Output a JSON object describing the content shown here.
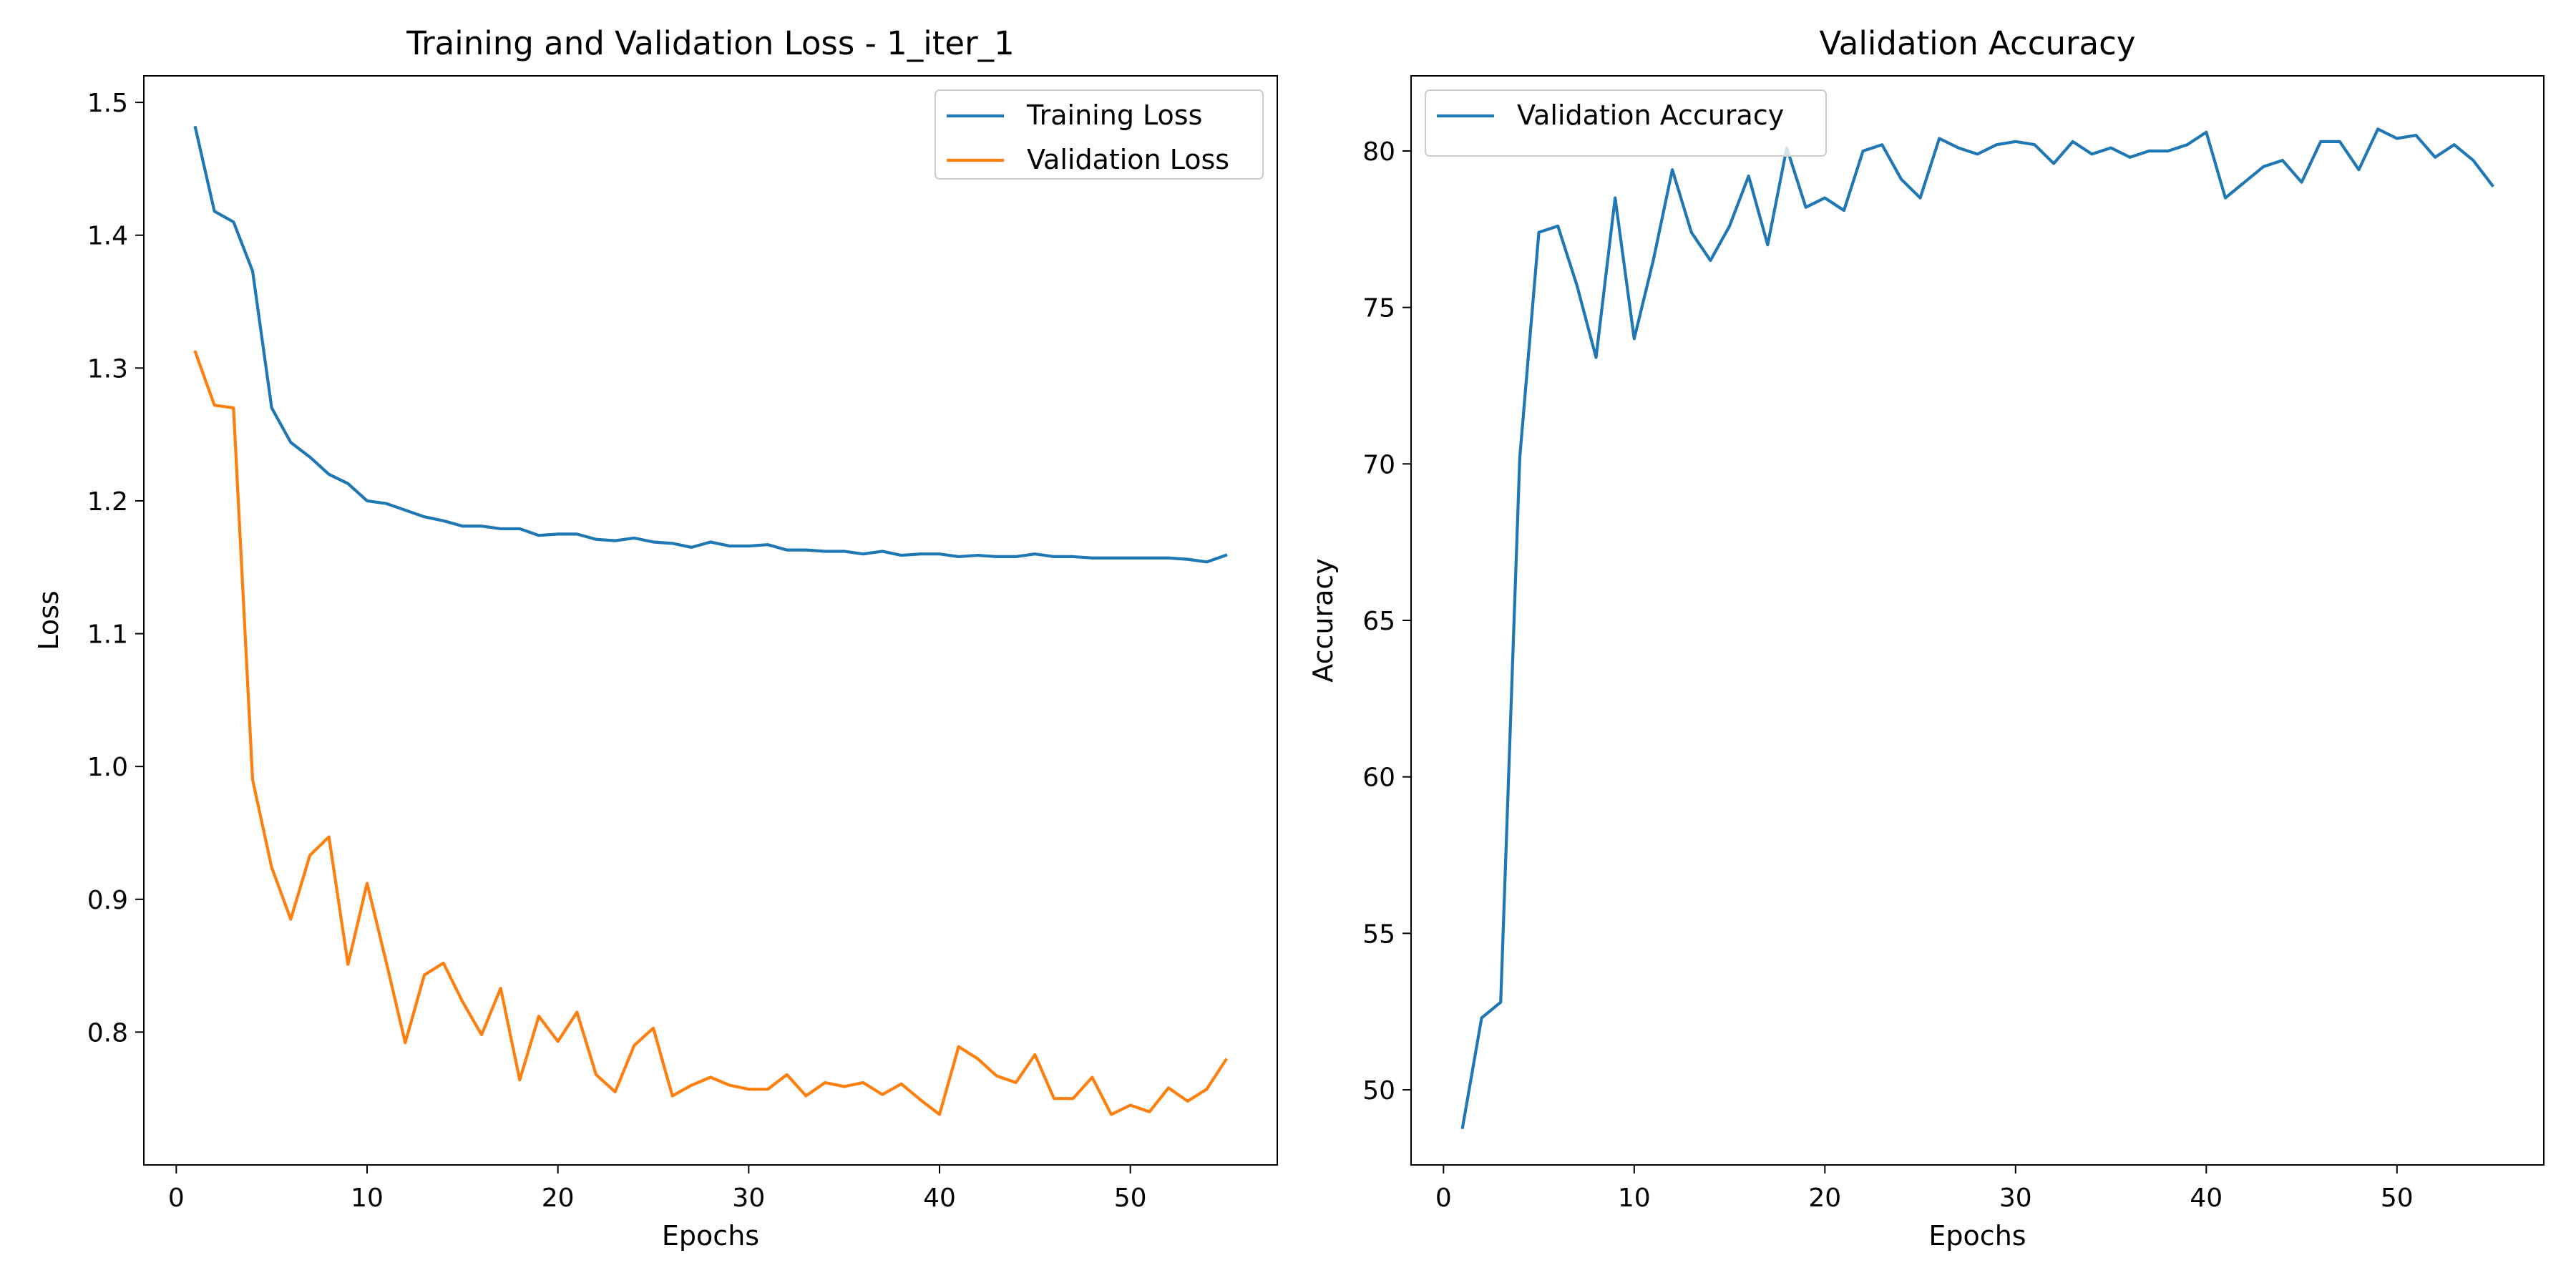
{
  "chart_data": [
    {
      "type": "line",
      "title": "Training and Validation Loss - 1_iter_1",
      "xlabel": "Epochs",
      "ylabel": "Loss",
      "xlim": [
        -1.7,
        57.7
      ],
      "ylim": [
        0.7,
        1.52
      ],
      "xticks": [
        0,
        10,
        20,
        30,
        40,
        50
      ],
      "yticks": [
        0.8,
        0.9,
        1.0,
        1.1,
        1.2,
        1.3,
        1.4,
        1.5
      ],
      "ytick_labels": [
        "0.8",
        "0.9",
        "1.0",
        "1.1",
        "1.2",
        "1.3",
        "1.4",
        "1.5"
      ],
      "grid": false,
      "legend_position": "upper right",
      "x": [
        1,
        2,
        3,
        4,
        5,
        6,
        7,
        8,
        9,
        10,
        11,
        12,
        13,
        14,
        15,
        16,
        17,
        18,
        19,
        20,
        21,
        22,
        23,
        24,
        25,
        26,
        27,
        28,
        29,
        30,
        31,
        32,
        33,
        34,
        35,
        36,
        37,
        38,
        39,
        40,
        41,
        42,
        43,
        44,
        45,
        46,
        47,
        48,
        49,
        50,
        51,
        52,
        53,
        54,
        55
      ],
      "series": [
        {
          "name": "Training Loss",
          "color": "#1f77b4",
          "values": [
            1.481,
            1.418,
            1.41,
            1.373,
            1.27,
            1.244,
            1.233,
            1.22,
            1.213,
            1.2,
            1.198,
            1.193,
            1.188,
            1.185,
            1.181,
            1.181,
            1.179,
            1.179,
            1.174,
            1.175,
            1.175,
            1.171,
            1.17,
            1.172,
            1.169,
            1.168,
            1.165,
            1.169,
            1.166,
            1.166,
            1.167,
            1.163,
            1.163,
            1.162,
            1.162,
            1.16,
            1.162,
            1.159,
            1.16,
            1.16,
            1.158,
            1.159,
            1.158,
            1.158,
            1.16,
            1.158,
            1.158,
            1.157,
            1.157,
            1.157,
            1.157,
            1.157,
            1.156,
            1.154,
            1.159
          ]
        },
        {
          "name": "Validation Loss",
          "color": "#ff7f0e",
          "values": [
            1.312,
            1.272,
            1.27,
            0.99,
            0.924,
            0.885,
            0.933,
            0.947,
            0.851,
            0.912,
            0.853,
            0.792,
            0.843,
            0.852,
            0.823,
            0.798,
            0.833,
            0.764,
            0.812,
            0.793,
            0.815,
            0.768,
            0.755,
            0.79,
            0.803,
            0.752,
            0.76,
            0.766,
            0.76,
            0.757,
            0.757,
            0.768,
            0.752,
            0.762,
            0.759,
            0.762,
            0.753,
            0.761,
            0.749,
            0.738,
            0.789,
            0.78,
            0.767,
            0.762,
            0.783,
            0.75,
            0.75,
            0.766,
            0.738,
            0.745,
            0.74,
            0.758,
            0.748,
            0.757,
            0.779
          ]
        }
      ]
    },
    {
      "type": "line",
      "title": "Validation Accuracy",
      "xlabel": "Epochs",
      "ylabel": "Accuracy",
      "xlim": [
        -1.7,
        57.7
      ],
      "ylim": [
        47.6,
        82.4
      ],
      "xticks": [
        0,
        10,
        20,
        30,
        40,
        50
      ],
      "yticks": [
        50,
        55,
        60,
        65,
        70,
        75,
        80
      ],
      "ytick_labels": [
        "50",
        "55",
        "60",
        "65",
        "70",
        "75",
        "80"
      ],
      "grid": false,
      "legend_position": "upper left",
      "x": [
        1,
        2,
        3,
        4,
        5,
        6,
        7,
        8,
        9,
        10,
        11,
        12,
        13,
        14,
        15,
        16,
        17,
        18,
        19,
        20,
        21,
        22,
        23,
        24,
        25,
        26,
        27,
        28,
        29,
        30,
        31,
        32,
        33,
        34,
        35,
        36,
        37,
        38,
        39,
        40,
        41,
        42,
        43,
        44,
        45,
        46,
        47,
        48,
        49,
        50,
        51,
        52,
        53,
        54,
        55
      ],
      "series": [
        {
          "name": "Validation Accuracy",
          "color": "#1f77b4",
          "values": [
            48.8,
            52.3,
            52.8,
            70.2,
            77.4,
            77.6,
            75.7,
            73.4,
            78.5,
            74.0,
            76.5,
            79.4,
            77.4,
            76.5,
            77.6,
            79.2,
            77.0,
            80.1,
            78.2,
            78.5,
            78.1,
            80.0,
            80.2,
            79.1,
            78.5,
            80.4,
            80.1,
            79.9,
            80.2,
            80.3,
            80.2,
            79.6,
            80.3,
            79.9,
            80.1,
            79.8,
            80.0,
            80.0,
            80.2,
            80.6,
            78.5,
            79.0,
            79.5,
            79.7,
            79.0,
            80.3,
            80.3,
            79.4,
            80.7,
            80.4,
            80.5,
            79.8,
            80.2,
            79.7,
            78.9
          ]
        }
      ]
    }
  ]
}
